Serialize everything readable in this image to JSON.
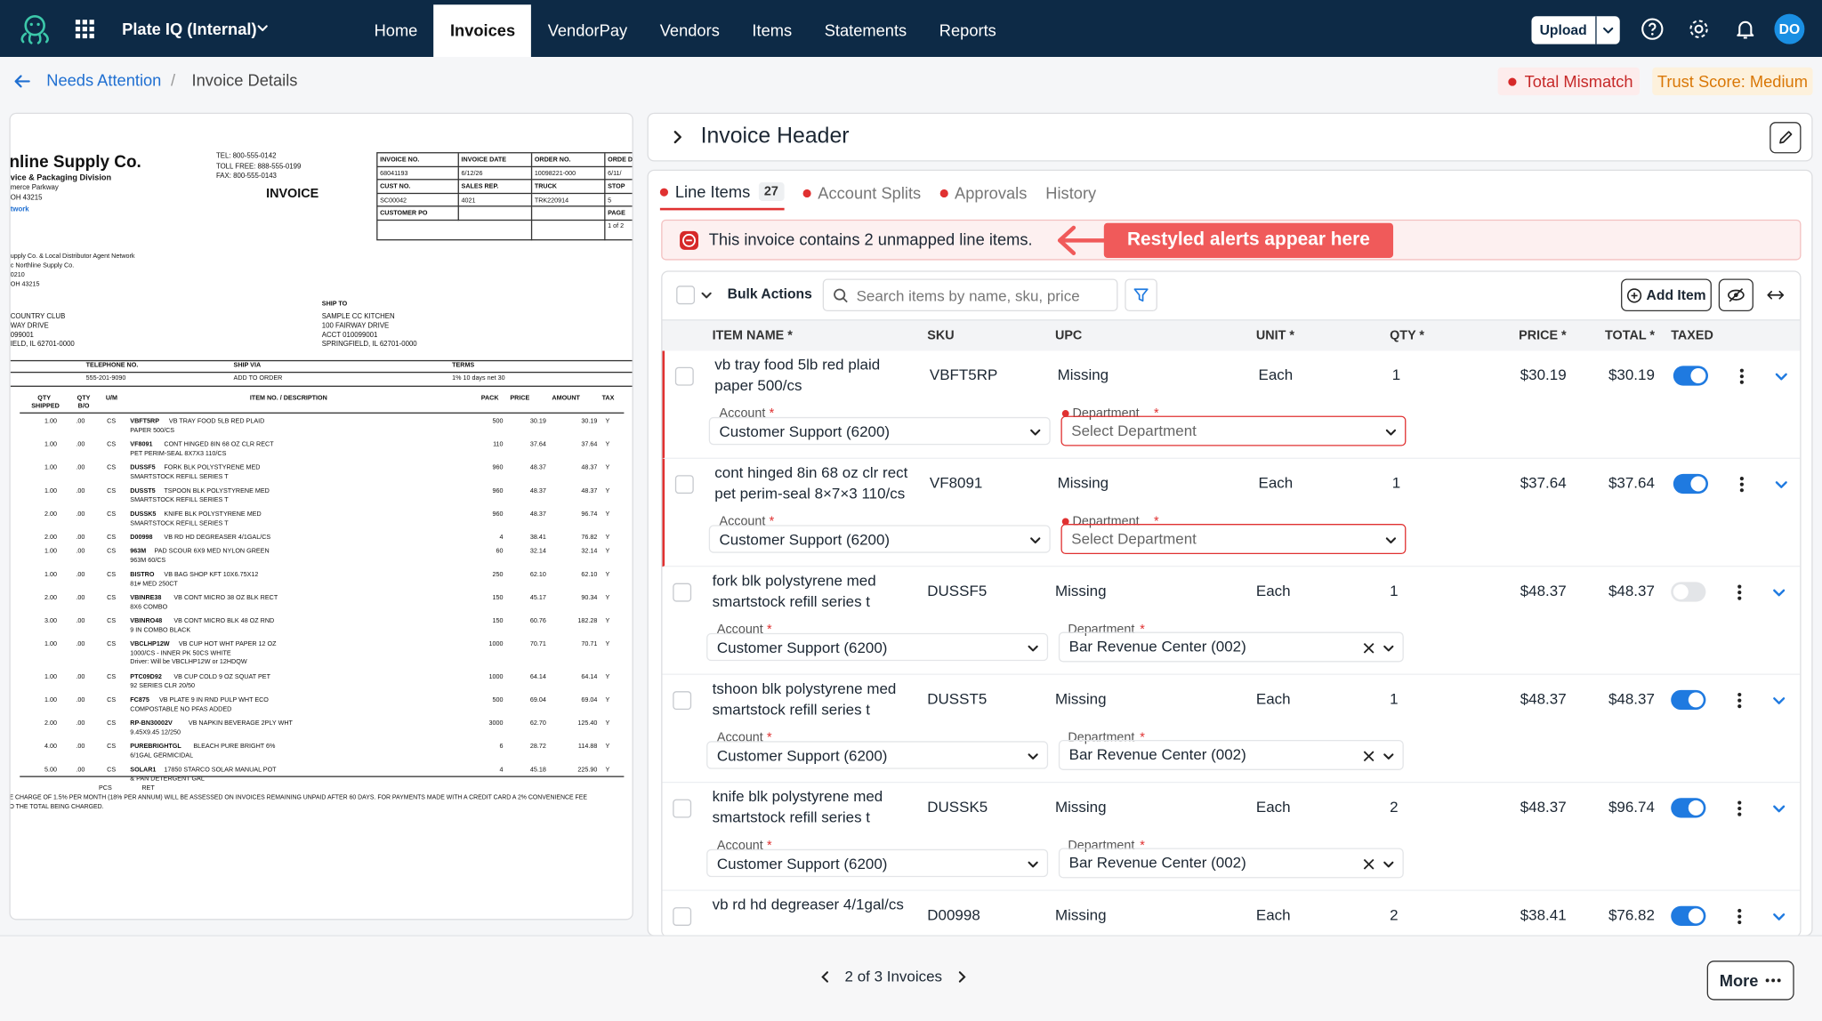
{
  "nav": {
    "app_name": "Plate IQ (Internal)",
    "tabs": [
      "Home",
      "Invoices",
      "VendorPay",
      "Vendors",
      "Items",
      "Statements",
      "Reports"
    ],
    "active_tab": 1,
    "upload": "Upload",
    "avatar": "DO"
  },
  "breadcrumb": {
    "parent": "Needs Attention",
    "separator": "/",
    "current": "Invoice Details"
  },
  "status": {
    "mismatch": "Total Mismatch",
    "trust": "Trust Score: Medium"
  },
  "invoice_doc": {
    "vendor": "nline Supply Co.",
    "division": "vice & Packaging Division",
    "address": [
      "merce Parkway",
      "OH 43215"
    ],
    "network": "twork",
    "contacts": [
      "TEL: 800-555-0142",
      "TOLL FREE: 888-555-0199",
      "FAX: 800-555-0143"
    ],
    "title": "INVOICE",
    "meta": [
      [
        "INVOICE NO.",
        "INVOICE DATE",
        "ORDER NO.",
        "ORDE DATE"
      ],
      [
        "68041193",
        "6/12/26",
        "10098221-000",
        "6/11/"
      ],
      [
        "CUST NO.",
        "SALES REP.",
        "TRUCK",
        "STOP"
      ],
      [
        "SC00042",
        "4021",
        "TRK220914",
        "5"
      ]
    ],
    "meta_po": "CUSTOMER PO",
    "meta_page": "PAGE",
    "meta_page_value": "1 of 2",
    "bill_to": [
      "upply Co. & Local Distributor Agent Network",
      "c Northline Supply Co.",
      "0210",
      "OH 43215"
    ],
    "sold_to": [
      "COUNTRY CLUB",
      "WAY DRIVE",
      "099001",
      "IELD, IL 62701-0000"
    ],
    "ship_to_label": "SHIP TO",
    "ship_to": [
      "SAMPLE CC KITCHEN",
      "100 FAIRWAY DRIVE",
      "ACCT 010099001",
      "SPRINGFIELD, IL 62701-0000"
    ],
    "terms_headers": [
      "TELEPHONE NO.",
      "SHIP VIA",
      "TERMS"
    ],
    "terms_values": [
      "555-201-9090",
      "ADD TO ORDER",
      "1% 10 days net 30"
    ],
    "item_headers": [
      "QTY SHIPPED",
      "QTY B/O",
      "U/M",
      "ITEM NO. / DESCRIPTION",
      "PACK",
      "PRICE",
      "AMOUNT",
      "TAX"
    ],
    "items": [
      {
        "qty": "1.00",
        "bo": ".00",
        "um": "CS",
        "code": "VBFT5RP",
        "desc": [
          "VB TRAY FOOD 5LB RED PLAID",
          "PAPER 500/CS"
        ],
        "pack": "500",
        "price": "30.19",
        "amount": "30.19",
        "tax": "Y"
      },
      {
        "qty": "1.00",
        "bo": ".00",
        "um": "CS",
        "code": "VF8091",
        "desc": [
          "CONT HINGED 8IN 68 OZ CLR RECT",
          "PET PERIM-SEAL 8X7X3 110/CS"
        ],
        "pack": "110",
        "price": "37.64",
        "amount": "37.64",
        "tax": "Y"
      },
      {
        "qty": "1.00",
        "bo": ".00",
        "um": "CS",
        "code": "DUSSF5",
        "desc": [
          "FORK BLK POLYSTYRENE MED",
          "SMARTSTOCK REFILL SERIES T"
        ],
        "pack": "960",
        "price": "48.37",
        "amount": "48.37",
        "tax": "Y"
      },
      {
        "qty": "1.00",
        "bo": ".00",
        "um": "CS",
        "code": "DUSST5",
        "desc": [
          "TSPOON BLK POLYSTYRENE MED",
          "SMARTSTOCK REFILL SERIES T"
        ],
        "pack": "960",
        "price": "48.37",
        "amount": "48.37",
        "tax": "Y"
      },
      {
        "qty": "2.00",
        "bo": ".00",
        "um": "CS",
        "code": "DUSSK5",
        "desc": [
          "KNIFE BLK POLYSTYRENE MED",
          "SMARTSTOCK REFILL SERIES T"
        ],
        "pack": "960",
        "price": "48.37",
        "amount": "96.74",
        "tax": "Y"
      },
      {
        "qty": "2.00",
        "bo": ".00",
        "um": "CS",
        "code": "D00998",
        "desc": [
          "VB RD HD DEGREASER 4/1GAL/CS"
        ],
        "pack": "4",
        "price": "38.41",
        "amount": "76.82",
        "tax": "Y"
      },
      {
        "qty": "1.00",
        "bo": ".00",
        "um": "CS",
        "code": "963M",
        "desc": [
          "PAD SCOUR 6X9 MED NYLON GREEN",
          "963M 60/CS"
        ],
        "pack": "60",
        "price": "32.14",
        "amount": "32.14",
        "tax": "Y"
      },
      {
        "qty": "1.00",
        "bo": ".00",
        "um": "CS",
        "code": "BISTRO",
        "desc": [
          "VB BAG SHOP KFT 10X6.75X12",
          "81# MED 250CT"
        ],
        "pack": "250",
        "price": "62.10",
        "amount": "62.10",
        "tax": "Y"
      },
      {
        "qty": "2.00",
        "bo": ".00",
        "um": "CS",
        "code": "VBINRE38",
        "desc": [
          "VB CONT MICRO 38 OZ BLK RECT",
          "8X6 COMBO"
        ],
        "pack": "150",
        "price": "45.17",
        "amount": "90.34",
        "tax": "Y"
      },
      {
        "qty": "3.00",
        "bo": ".00",
        "um": "CS",
        "code": "VBINRO48",
        "desc": [
          "VB CONT MICRO BLK 48 OZ RND",
          "9 IN COMBO BLACK"
        ],
        "pack": "150",
        "price": "60.76",
        "amount": "182.28",
        "tax": "Y"
      },
      {
        "qty": "1.00",
        "bo": ".00",
        "um": "CS",
        "code": "VBCLHP12W",
        "desc": [
          "VB CUP HOT WHT PAPER 12 OZ",
          "1000/CS - INNER PK 50CS WHITE",
          "Driver: Will be VBCLHP12W or 12HDQW"
        ],
        "pack": "1000",
        "price": "70.71",
        "amount": "70.71",
        "tax": "Y"
      },
      {
        "qty": "1.00",
        "bo": ".00",
        "um": "CS",
        "code": "PTC09D92",
        "desc": [
          "VB CUP COLD 9 OZ SQUAT PET",
          "92 SERIES CLR 20/50"
        ],
        "pack": "1000",
        "price": "64.14",
        "amount": "64.14",
        "tax": "Y"
      },
      {
        "qty": "1.00",
        "bo": ".00",
        "um": "CS",
        "code": "FC875",
        "desc": [
          "VB PLATE 9 IN RND PULP WHT ECO",
          "COMPOSTABLE NO PFAS ADDED"
        ],
        "pack": "500",
        "price": "69.04",
        "amount": "69.04",
        "tax": "Y"
      },
      {
        "qty": "2.00",
        "bo": ".00",
        "um": "CS",
        "code": "RP-BN30002V",
        "desc": [
          "VB NAPKIN BEVERAGE 2PLY WHT",
          "9.45X9.45 12/250"
        ],
        "pack": "3000",
        "price": "62.70",
        "amount": "125.40",
        "tax": "Y"
      },
      {
        "qty": "4.00",
        "bo": ".00",
        "um": "CS",
        "code": "PUREBRIGHTGL",
        "desc": [
          "BLEACH PURE BRIGHT 6%",
          "6/1GAL GERMICIDAL"
        ],
        "pack": "6",
        "price": "28.72",
        "amount": "114.88",
        "tax": "Y"
      },
      {
        "qty": "5.00",
        "bo": ".00",
        "um": "CS",
        "code": "SOLAR1",
        "desc": [
          "17850 STARCO SOLAR MANUAL POT",
          "& PAN DETERGENT GAL"
        ],
        "pack": "4",
        "price": "45.18",
        "amount": "225.90",
        "tax": "Y"
      }
    ],
    "footer_marks": [
      "PCS",
      "RET"
    ],
    "footer_note": [
      "E CHARGE OF 1.5% PER MONTH (18% PER ANNUM) WILL BE ASSESSED ON INVOICES REMAINING UNPAID AFTER 60 DAYS. FOR PAYMENTS MADE WITH A CREDIT CARD A 2% CONVENIENCE FEE",
      "O THE TOTAL BEING CHARGED."
    ]
  },
  "invoice_header": {
    "title": "Invoice Header"
  },
  "tabs": [
    {
      "label": "Line Items",
      "count": 27,
      "flag": true
    },
    {
      "label": "Account Splits",
      "flag": true
    },
    {
      "label": "Approvals",
      "flag": true
    },
    {
      "label": "History",
      "flag": false
    }
  ],
  "alert": {
    "text": "This invoice contains 2 unmapped line items.",
    "annotation": "Restyled alerts appear here"
  },
  "toolbar": {
    "bulk": "Bulk Actions",
    "search_placeholder": "Search items by name, sku, price",
    "add": "Add Item"
  },
  "columns": [
    "ITEM NAME *",
    "SKU",
    "UPC",
    "UNIT *",
    "QTY *",
    "PRICE *",
    "TOTAL *",
    "TAXED"
  ],
  "field_labels": {
    "account": "Account",
    "department": "Department",
    "required": "*"
  },
  "rows": [
    {
      "name": "vb tray food 5lb red plaid paper 500/cs",
      "sku": "VBFT5RP",
      "upc": "Missing",
      "unit": "Each",
      "qty": "1",
      "price": "$30.19",
      "total": "$30.19",
      "taxed": true,
      "account": "Customer Support (6200)",
      "department_placeholder": "Select Department"
    },
    {
      "name": "cont hinged 8in 68 oz clr rect pet perim-seal 8×7×3 110/cs",
      "sku": "VF8091",
      "upc": "Missing",
      "unit": "Each",
      "qty": "1",
      "price": "$37.64",
      "total": "$37.64",
      "taxed": true,
      "account": "Customer Support (6200)",
      "department_placeholder": "Select Department"
    },
    {
      "name": "fork blk polystyrene med smartstock refill series t",
      "sku": "DUSSF5",
      "upc": "Missing",
      "unit": "Each",
      "qty": "1",
      "price": "$48.37",
      "total": "$48.37",
      "taxed": false,
      "account": "Customer Support (6200)",
      "department": "Bar Revenue Center (002)"
    },
    {
      "name": "tshoon blk polystyrene med smartstock refill series t",
      "sku": "DUSST5",
      "upc": "Missing",
      "unit": "Each",
      "qty": "1",
      "price": "$48.37",
      "total": "$48.37",
      "taxed": true,
      "account": "Customer Support (6200)",
      "department": "Bar Revenue Center (002)"
    },
    {
      "name": "knife blk polystyrene med smartstock refill series t",
      "sku": "DUSSK5",
      "upc": "Missing",
      "unit": "Each",
      "qty": "2",
      "price": "$48.37",
      "total": "$96.74",
      "taxed": true,
      "account": "Customer Support (6200)",
      "department": "Bar Revenue Center (002)"
    },
    {
      "name": "vb rd hd degreaser 4/1gal/cs",
      "sku": "D00998",
      "upc": "Missing",
      "unit": "Each",
      "qty": "2",
      "price": "$38.41",
      "total": "$76.82",
      "taxed": true
    }
  ],
  "footer": {
    "pager": "2 of 3 Invoices",
    "more": "More"
  }
}
